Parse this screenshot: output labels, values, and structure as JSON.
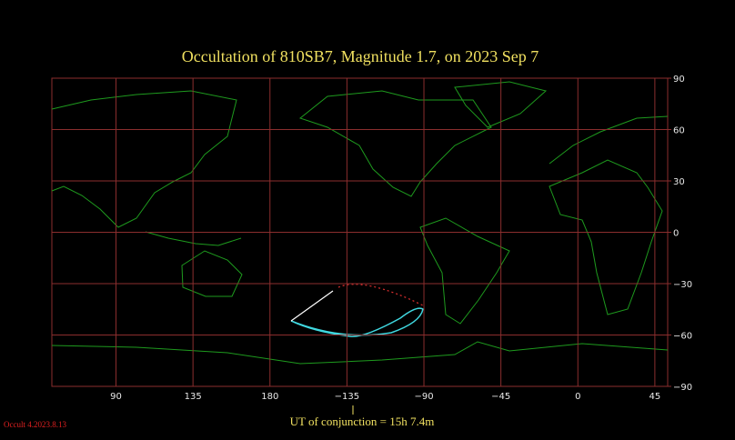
{
  "header": {
    "title": "Occultation  of  810SB7,      Magnitude 1.7,   on  2023 Sep  7"
  },
  "map": {
    "lon_ticks": [
      90,
      135,
      180,
      {
        "value": -135,
        "label": "−135"
      },
      {
        "value": -90,
        "label": "−90"
      },
      {
        "value": -45,
        "label": "−45"
      },
      0,
      45
    ],
    "lat_ticks": [
      90,
      60,
      30,
      0,
      {
        "value": -30,
        "label": "−30"
      },
      {
        "value": -60,
        "label": "−60"
      },
      {
        "value": -90,
        "label": "−90"
      }
    ],
    "conjunction": "UT of conjunction = 15h  7.4m"
  },
  "footer": {
    "version": "Occult 4.2023.8.13"
  }
}
